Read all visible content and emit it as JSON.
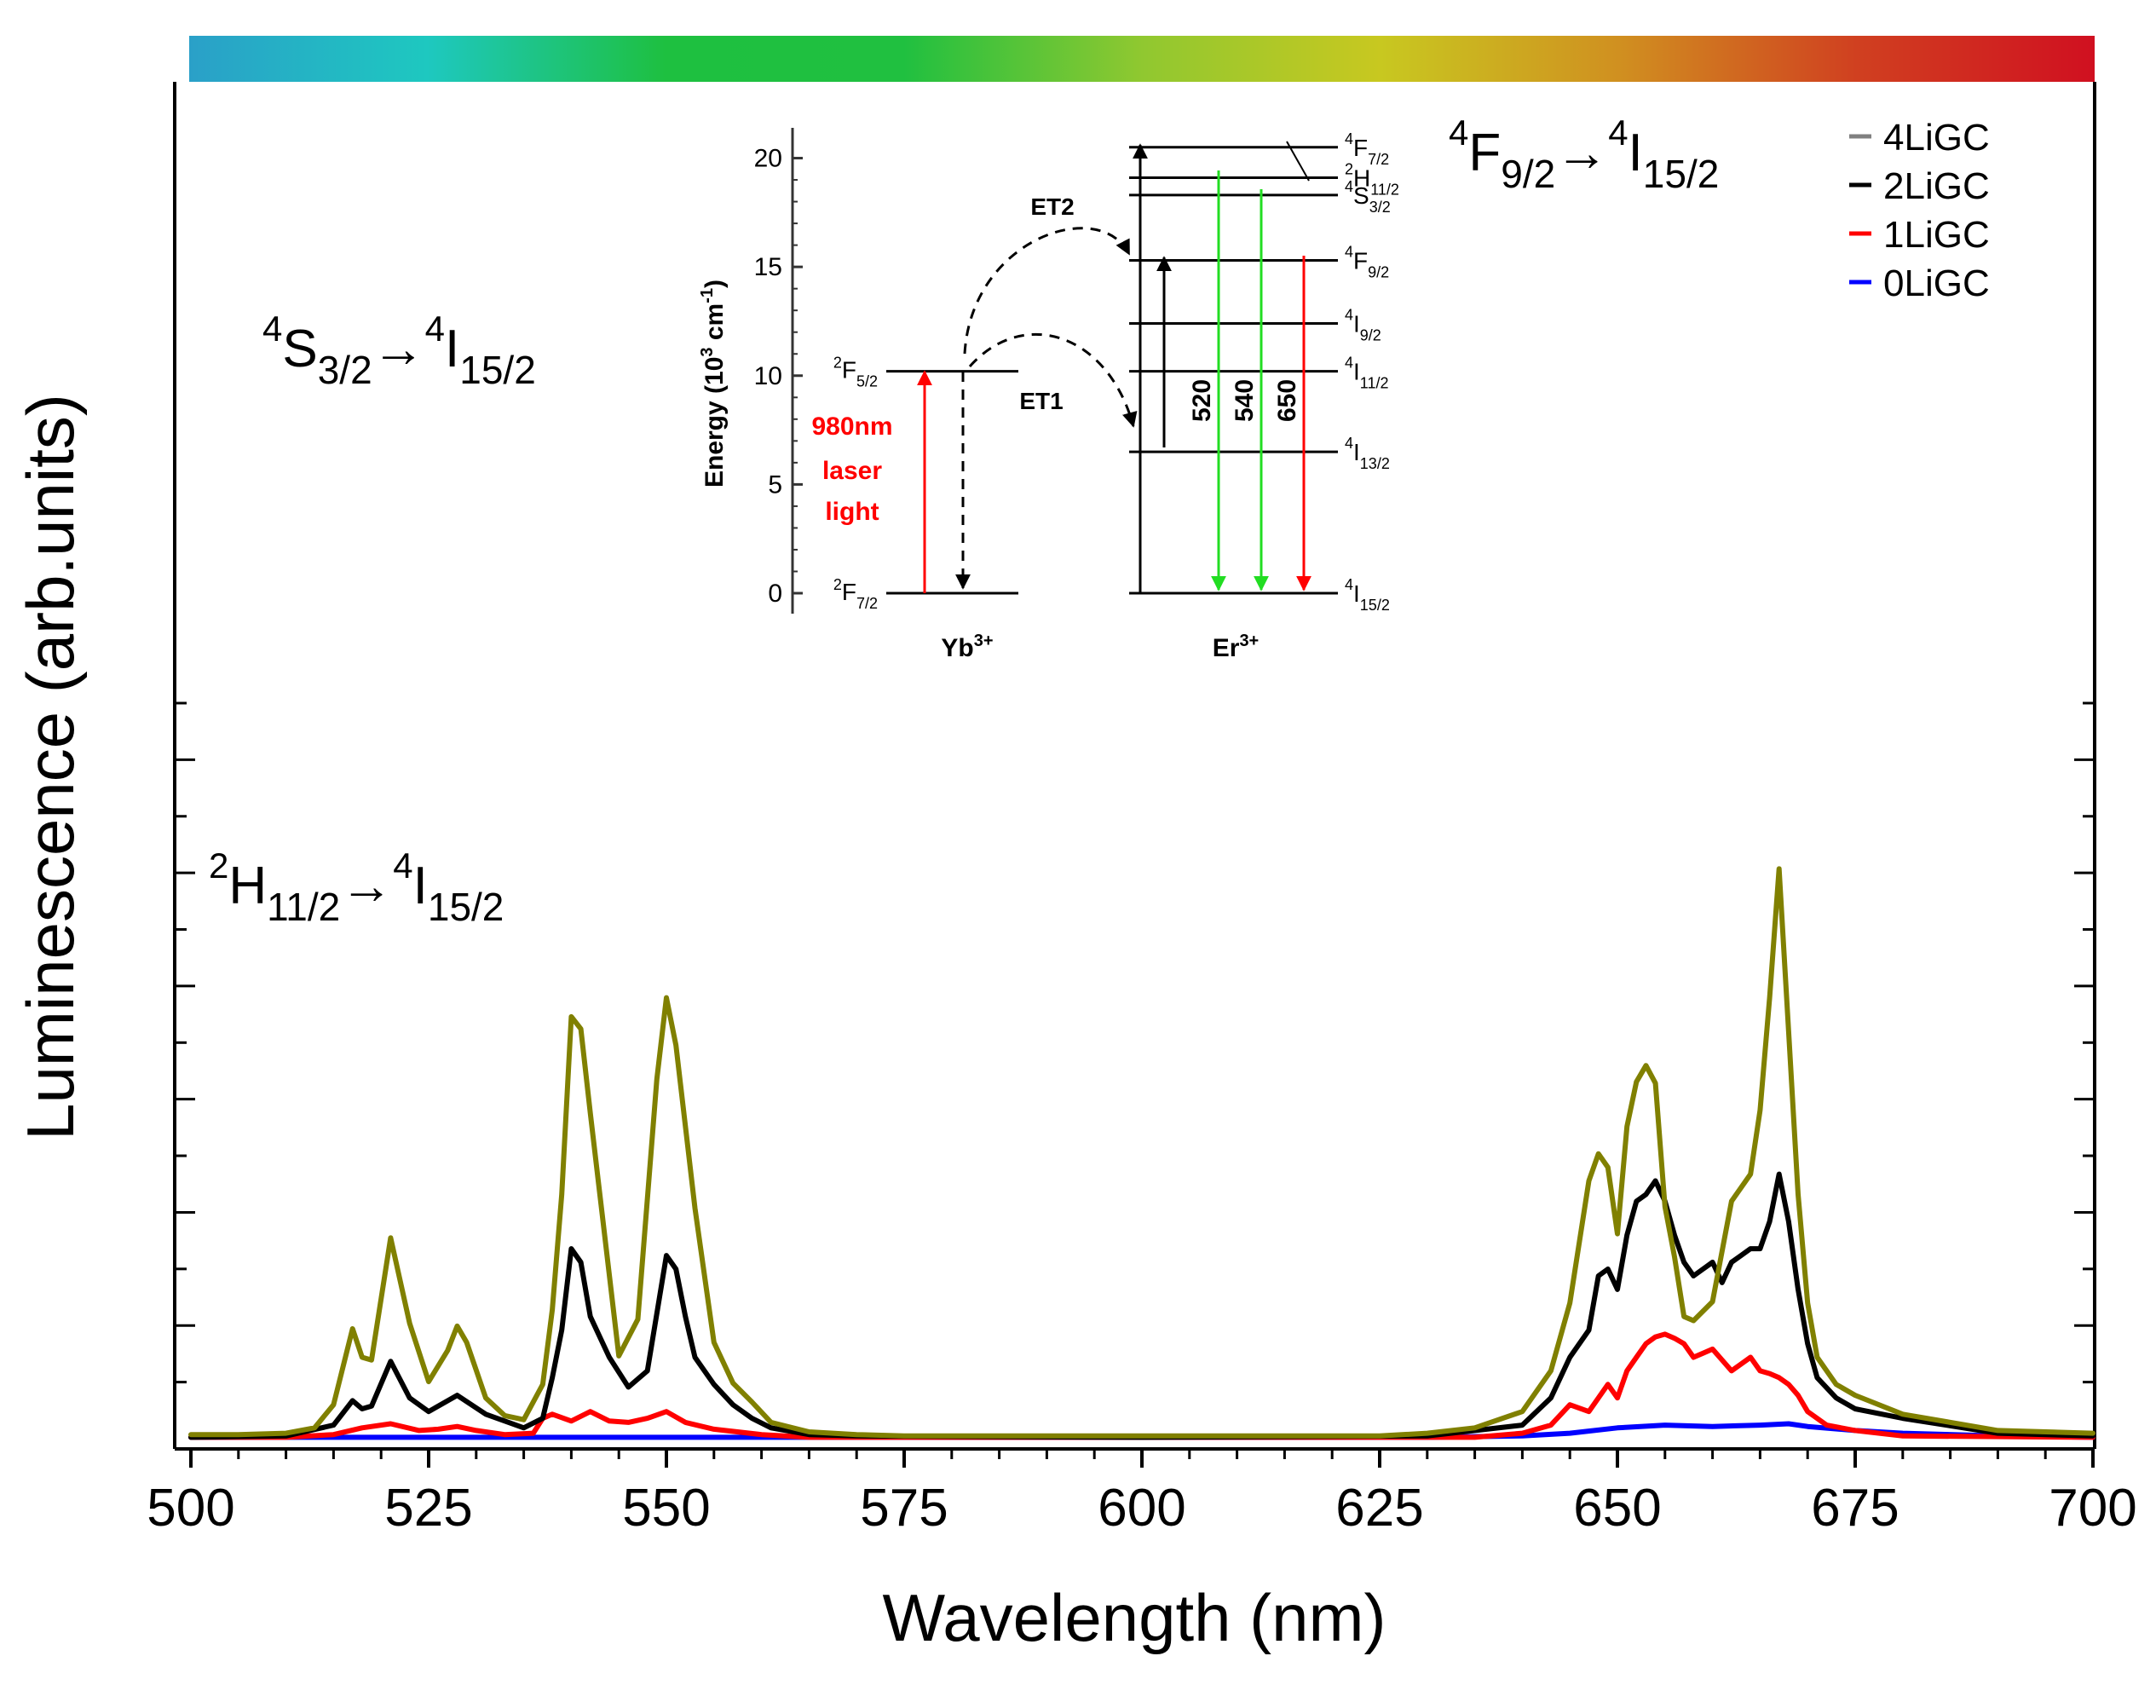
{
  "chart_data": {
    "type": "line",
    "title": "",
    "xlabel": "Wavelength (nm)",
    "ylabel": "Luminescence (arb.units)",
    "xlim": [
      500,
      700
    ],
    "ylim": [
      0,
      1.0
    ],
    "xticks": [
      500,
      525,
      550,
      575,
      600,
      625,
      650,
      675,
      700
    ],
    "xtick_labels": [
      "500",
      "525",
      "550",
      "575",
      "600",
      "625",
      "650",
      "675",
      "700"
    ],
    "legend": {
      "position": "top-right",
      "entries": [
        "4LiGC",
        "2LiGC",
        "1LiGC",
        "0LiGC"
      ]
    },
    "series": [
      {
        "name": "4LiGC",
        "color": "#808000",
        "x": [
          500,
          505,
          510,
          513,
          515,
          517,
          518,
          519,
          521,
          523,
          525,
          527,
          528,
          529,
          531,
          533,
          535,
          537,
          538,
          539,
          540,
          541,
          542,
          543,
          545,
          547,
          549,
          550,
          551,
          553,
          555,
          557,
          559,
          561,
          565,
          570,
          575,
          600,
          625,
          630,
          635,
          640,
          643,
          645,
          647,
          648,
          649,
          650,
          651,
          652,
          653,
          654,
          655,
          656,
          657,
          658,
          660,
          662,
          664,
          665,
          666,
          667,
          668,
          669,
          670,
          671,
          673,
          675,
          680,
          690,
          700
        ],
        "y": [
          0.003,
          0.003,
          0.004,
          0.008,
          0.025,
          0.081,
          0.06,
          0.058,
          0.148,
          0.085,
          0.042,
          0.065,
          0.083,
          0.071,
          0.03,
          0.017,
          0.014,
          0.04,
          0.095,
          0.18,
          0.311,
          0.302,
          0.24,
          0.18,
          0.061,
          0.088,
          0.265,
          0.325,
          0.29,
          0.17,
          0.071,
          0.041,
          0.027,
          0.012,
          0.005,
          0.003,
          0.002,
          0.002,
          0.002,
          0.004,
          0.008,
          0.02,
          0.05,
          0.1,
          0.19,
          0.21,
          0.2,
          0.151,
          0.23,
          0.263,
          0.275,
          0.262,
          0.171,
          0.134,
          0.09,
          0.087,
          0.101,
          0.175,
          0.195,
          0.242,
          0.325,
          0.42,
          0.3,
          0.18,
          0.1,
          0.06,
          0.04,
          0.032,
          0.018,
          0.006,
          0.004
        ]
      },
      {
        "name": "2LiGC",
        "color": "#000000",
        "x": [
          500,
          510,
          515,
          517,
          518,
          519,
          521,
          523,
          525,
          528,
          531,
          535,
          537,
          538,
          539,
          540,
          541,
          542,
          544,
          546,
          548,
          550,
          551,
          552,
          553,
          555,
          557,
          559,
          561,
          565,
          570,
          600,
          630,
          640,
          643,
          645,
          647,
          648,
          649,
          650,
          651,
          652,
          653,
          654,
          655,
          656,
          657,
          658,
          659,
          660,
          661,
          662,
          663,
          664,
          665,
          666,
          667,
          668,
          669,
          670,
          671,
          673,
          675,
          680,
          690,
          700
        ],
        "y": [
          0.001,
          0.002,
          0.01,
          0.028,
          0.022,
          0.024,
          0.057,
          0.03,
          0.02,
          0.032,
          0.018,
          0.008,
          0.015,
          0.045,
          0.08,
          0.14,
          0.13,
          0.09,
          0.06,
          0.038,
          0.05,
          0.135,
          0.125,
          0.09,
          0.06,
          0.04,
          0.025,
          0.015,
          0.008,
          0.003,
          0.002,
          0.001,
          0.002,
          0.01,
          0.03,
          0.06,
          0.08,
          0.12,
          0.125,
          0.11,
          0.15,
          0.175,
          0.18,
          0.19,
          0.175,
          0.15,
          0.13,
          0.12,
          0.125,
          0.13,
          0.115,
          0.13,
          0.135,
          0.14,
          0.14,
          0.16,
          0.195,
          0.16,
          0.11,
          0.07,
          0.045,
          0.03,
          0.022,
          0.015,
          0.004,
          0.002
        ]
      },
      {
        "name": "1LiGC",
        "color": "#ff0000",
        "x": [
          500,
          510,
          515,
          518,
          521,
          524,
          526,
          528,
          530,
          533,
          536,
          537,
          538,
          540,
          542,
          544,
          546,
          548,
          550,
          552,
          555,
          560,
          565,
          600,
          635,
          640,
          643,
          645,
          647,
          648,
          649,
          650,
          651,
          652,
          653,
          654,
          655,
          656,
          657,
          658,
          659,
          660,
          661,
          662,
          663,
          664,
          665,
          666,
          667,
          668,
          669,
          670,
          672,
          675,
          680,
          700
        ],
        "y": [
          0.001,
          0.001,
          0.003,
          0.008,
          0.011,
          0.006,
          0.007,
          0.009,
          0.006,
          0.003,
          0.004,
          0.015,
          0.018,
          0.013,
          0.02,
          0.013,
          0.012,
          0.015,
          0.02,
          0.012,
          0.007,
          0.003,
          0.001,
          0.001,
          0.001,
          0.004,
          0.01,
          0.025,
          0.02,
          0.03,
          0.04,
          0.03,
          0.05,
          0.06,
          0.07,
          0.075,
          0.077,
          0.074,
          0.07,
          0.06,
          0.063,
          0.066,
          0.058,
          0.05,
          0.055,
          0.06,
          0.05,
          0.048,
          0.045,
          0.04,
          0.032,
          0.02,
          0.01,
          0.006,
          0.002,
          0.001
        ]
      },
      {
        "name": "0LiGC",
        "color": "#0000ff",
        "x": [
          500,
          550,
          600,
          630,
          640,
          645,
          650,
          655,
          660,
          665,
          668,
          670,
          675,
          680,
          690,
          700
        ],
        "y": [
          0.001,
          0.001,
          0.001,
          0.001,
          0.002,
          0.004,
          0.008,
          0.01,
          0.009,
          0.01,
          0.011,
          0.009,
          0.006,
          0.004,
          0.002,
          0.001
        ]
      }
    ],
    "colorbar": {
      "stops": [
        "#2aa0c8",
        "#1ec8c0",
        "#1ec040",
        "#20c040",
        "#90c830",
        "#c8c820",
        "#d09020",
        "#d04020",
        "#d01020"
      ]
    },
    "annotations": {
      "peak_labels": [
        {
          "main1": "2",
          "main2": "H",
          "sub1": "11/2",
          "arrow": "→",
          "sup2": "4",
          "main3": "I",
          "sub2": "15/2"
        },
        {
          "main1": "4",
          "main2": "S",
          "sub1": "3/2",
          "arrow": "→",
          "sup2": "4",
          "main3": "I",
          "sub2": "15/2"
        },
        {
          "main1": "4",
          "main2": "F",
          "sub1": "9/2",
          "arrow": "→",
          "sup2": "4",
          "main3": "I",
          "sub2": "15/2"
        }
      ]
    },
    "inset": {
      "ylabel": "Energy (10",
      "ylabel_sup": "3",
      "ylabel_tail": " cm",
      "ylabel_sup2": "-1",
      "ylabel_close": ")",
      "yticks": [
        0,
        5,
        10,
        15,
        20
      ],
      "yb_label": "Yb",
      "yb_sup": "3+",
      "er_label": "Er",
      "er_sup": "3+",
      "yb_levels": [
        {
          "name": "2",
          "letter": "F",
          "sub": "7/2",
          "energy": 0
        },
        {
          "name": "2",
          "letter": "F",
          "sub": "5/2",
          "energy": 10.2
        }
      ],
      "er_levels": [
        {
          "sup": "4",
          "letter": "I",
          "sub": "15/2",
          "energy": 0
        },
        {
          "sup": "4",
          "letter": "I",
          "sub": "13/2",
          "energy": 6.5
        },
        {
          "sup": "4",
          "letter": "I",
          "sub": "11/2",
          "energy": 10.2
        },
        {
          "sup": "4",
          "letter": "I",
          "sub": "9/2",
          "energy": 12.4
        },
        {
          "sup": "4",
          "letter": "F",
          "sub": "9/2",
          "energy": 15.3
        },
        {
          "sup": "4",
          "letter": "S",
          "sub": "3/2",
          "energy": 18.3
        },
        {
          "sup": "2",
          "letter": "H",
          "sub": "11/2",
          "energy": 19.1
        },
        {
          "sup": "4",
          "letter": "F",
          "sub": "7/2",
          "energy": 20.5
        }
      ],
      "laser_text": [
        "980nm",
        "laser",
        "light"
      ],
      "et1": "ET1",
      "et2": "ET2",
      "emission_labels": [
        "520",
        "540",
        "650"
      ]
    }
  }
}
